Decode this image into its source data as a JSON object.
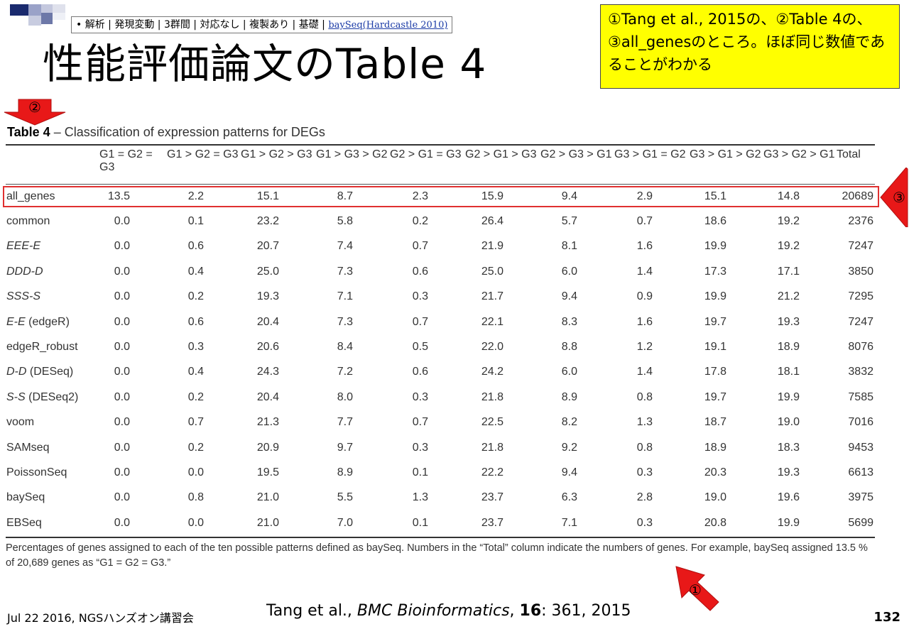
{
  "breadcrumb": {
    "bullet": "•",
    "path": "解析 | 発現変動 | 3群間 | 対応なし | 複製あり | 基礎 | ",
    "link": "baySeq(Hardcastle 2010)"
  },
  "title": "性能評価論文のTable 4",
  "note": "①Tang et al., 2015の、②Table 4の、③all_genesのところ。ほぼ同じ数値であることがわかる",
  "markers": {
    "m1": "①",
    "m2": "②",
    "m3": "③"
  },
  "colors": {
    "note_bg": "#ffff00",
    "highlight": "#e03030",
    "arrow": "#e81818"
  },
  "table": {
    "caption_bold": "Table 4",
    "caption_rest": " – Classification of expression patterns for DEGs",
    "headers": [
      "",
      "G1 = G2 = G3",
      "G1 > G2 = G3",
      "G1 > G2 > G3",
      "G1 > G3 > G2",
      "G2 > G1 = G3",
      "G2 > G1 > G3",
      "G2 > G3 > G1",
      "G3 > G1 = G2",
      "G3 > G1 > G2",
      "G3 > G2 > G1",
      "Total"
    ],
    "rows": [
      {
        "name": "all_genes",
        "italic": false,
        "values": [
          "13.5",
          "2.2",
          "15.1",
          "8.7",
          "2.3",
          "15.9",
          "9.4",
          "2.9",
          "15.1",
          "14.8"
        ],
        "total": "20689"
      },
      {
        "name": "common",
        "italic": false,
        "values": [
          "0.0",
          "0.1",
          "23.2",
          "5.8",
          "0.2",
          "26.4",
          "5.7",
          "0.7",
          "18.6",
          "19.2"
        ],
        "total": "2376"
      },
      {
        "name": "EEE-E",
        "italic": true,
        "values": [
          "0.0",
          "0.6",
          "20.7",
          "7.4",
          "0.7",
          "21.9",
          "8.1",
          "1.6",
          "19.9",
          "19.2"
        ],
        "total": "7247"
      },
      {
        "name": "DDD-D",
        "italic": true,
        "values": [
          "0.0",
          "0.4",
          "25.0",
          "7.3",
          "0.6",
          "25.0",
          "6.0",
          "1.4",
          "17.3",
          "17.1"
        ],
        "total": "3850"
      },
      {
        "name": "SSS-S",
        "italic": true,
        "values": [
          "0.0",
          "0.2",
          "19.3",
          "7.1",
          "0.3",
          "21.7",
          "9.4",
          "0.9",
          "19.9",
          "21.2"
        ],
        "total": "7295"
      },
      {
        "name": "E-E (edgeR)",
        "italic": false,
        "italic_prefix": "E-E",
        "rest": " (edgeR)",
        "values": [
          "0.0",
          "0.6",
          "20.4",
          "7.3",
          "0.7",
          "22.1",
          "8.3",
          "1.6",
          "19.7",
          "19.3"
        ],
        "total": "7247"
      },
      {
        "name": "edgeR_robust",
        "italic": false,
        "values": [
          "0.0",
          "0.3",
          "20.6",
          "8.4",
          "0.5",
          "22.0",
          "8.8",
          "1.2",
          "19.1",
          "18.9"
        ],
        "total": "8076"
      },
      {
        "name": "D-D (DESeq)",
        "italic": false,
        "italic_prefix": "D-D",
        "rest": " (DESeq)",
        "values": [
          "0.0",
          "0.4",
          "24.3",
          "7.2",
          "0.6",
          "24.2",
          "6.0",
          "1.4",
          "17.8",
          "18.1"
        ],
        "total": "3832"
      },
      {
        "name": "S-S (DESeq2)",
        "italic": false,
        "italic_prefix": "S-S",
        "rest": " (DESeq2)",
        "values": [
          "0.0",
          "0.2",
          "20.4",
          "8.0",
          "0.3",
          "21.8",
          "8.9",
          "0.8",
          "19.7",
          "19.9"
        ],
        "total": "7585"
      },
      {
        "name": "voom",
        "italic": false,
        "values": [
          "0.0",
          "0.7",
          "21.3",
          "7.7",
          "0.7",
          "22.5",
          "8.2",
          "1.3",
          "18.7",
          "19.0"
        ],
        "total": "7016"
      },
      {
        "name": "SAMseq",
        "italic": false,
        "values": [
          "0.0",
          "0.2",
          "20.9",
          "9.7",
          "0.3",
          "21.8",
          "9.2",
          "0.8",
          "18.9",
          "18.3"
        ],
        "total": "9453"
      },
      {
        "name": "PoissonSeq",
        "italic": false,
        "values": [
          "0.0",
          "0.0",
          "19.5",
          "8.9",
          "0.1",
          "22.2",
          "9.4",
          "0.3",
          "20.3",
          "19.3"
        ],
        "total": "6613"
      },
      {
        "name": "baySeq",
        "italic": false,
        "values": [
          "0.0",
          "0.8",
          "21.0",
          "5.5",
          "1.3",
          "23.7",
          "6.3",
          "2.8",
          "19.0",
          "19.6"
        ],
        "total": "3975"
      },
      {
        "name": "EBSeq",
        "italic": false,
        "values": [
          "0.0",
          "0.0",
          "21.0",
          "7.0",
          "0.1",
          "23.7",
          "7.1",
          "0.3",
          "20.8",
          "19.9"
        ],
        "total": "5699"
      }
    ],
    "footnote": "Percentages of genes assigned to each of the ten possible patterns defined as baySeq. Numbers in the “Total” column indicate the numbers of genes. For example, baySeq assigned 13.5 % of 20,689 genes as “G1 = G2 = G3.”"
  },
  "citation": {
    "authors": "Tang et al., ",
    "journal": "BMC Bioinformatics",
    "sep": ", ",
    "volume": "16",
    "rest": ": 361, 2015"
  },
  "footer": {
    "date": "Jul 22 2016, NGSハンズオン講習会",
    "page": "132"
  }
}
